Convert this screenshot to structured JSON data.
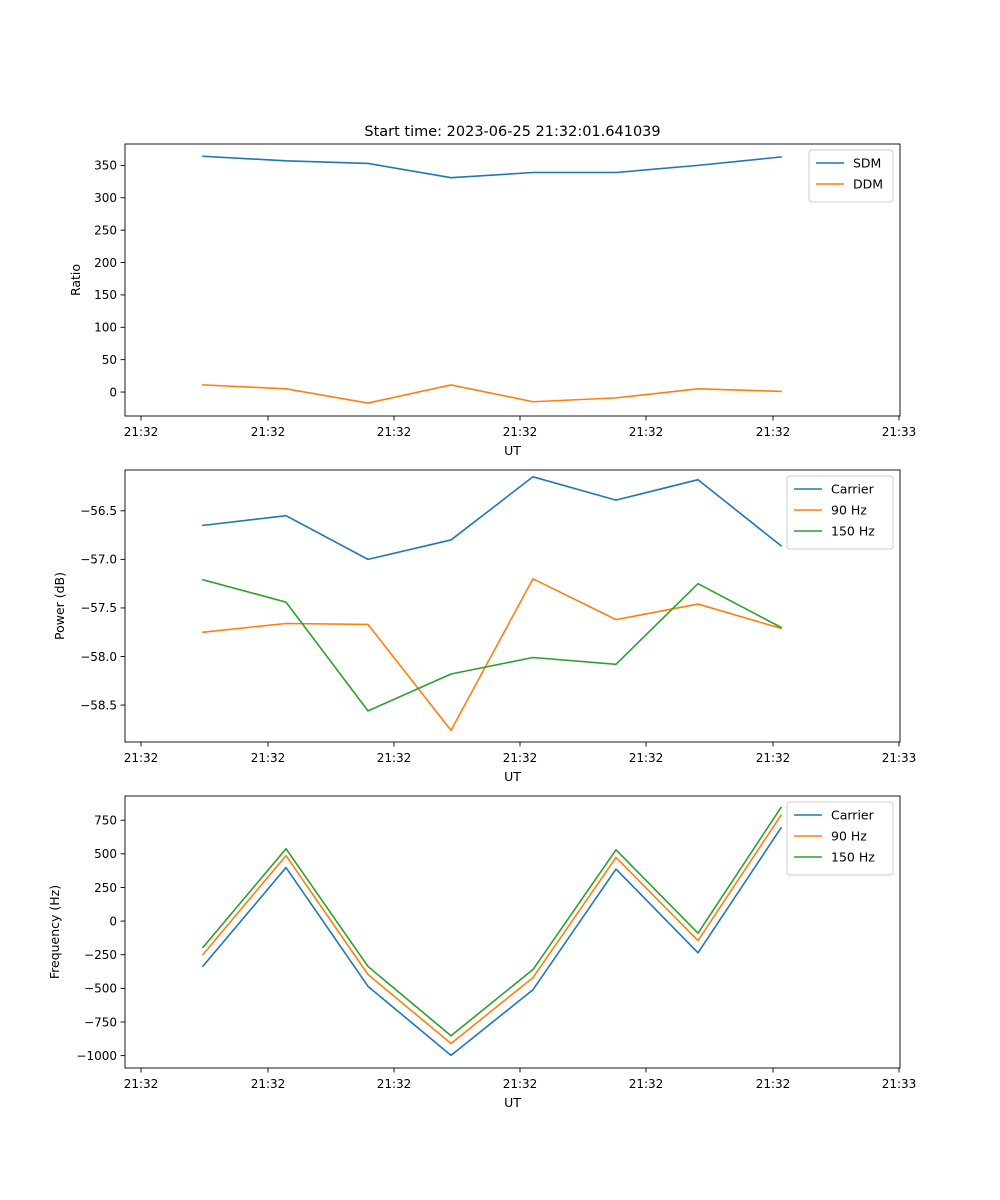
{
  "chart_data": [
    {
      "type": "line",
      "title": "Start time: 2023-06-25 21:32:01.641039",
      "xlabel": "UT",
      "ylabel": "Ratio",
      "x_tick_labels": [
        "21:32",
        "21:32",
        "21:32",
        "21:32",
        "21:32",
        "21:32",
        "21:32",
        "21:33"
      ],
      "ylim": [
        -37,
        383
      ],
      "yticks": [
        0,
        50,
        100,
        150,
        200,
        250,
        300,
        350
      ],
      "legend": "top-right",
      "series": [
        {
          "name": "SDM",
          "color": "#1f77b4",
          "values": [
            364,
            357,
            353,
            331,
            339,
            339,
            350,
            363
          ]
        },
        {
          "name": "DDM",
          "color": "#ff7f0e",
          "values": [
            11,
            5,
            -17,
            11,
            -15,
            -9,
            5,
            1
          ]
        }
      ]
    },
    {
      "type": "line",
      "title": "",
      "xlabel": "UT",
      "ylabel": "Power (dB)",
      "x_tick_labels": [
        "21:32",
        "21:32",
        "21:32",
        "21:32",
        "21:32",
        "21:32",
        "21:32",
        "21:33"
      ],
      "ylim": [
        -58.88,
        -56.08
      ],
      "yticks": [
        -58.5,
        -58.0,
        -57.5,
        -57.0,
        -56.5
      ],
      "ytick_labels": [
        "−58.5",
        "−58.0",
        "−57.5",
        "−57.0",
        "−56.5"
      ],
      "legend": "top-right",
      "series": [
        {
          "name": "Carrier",
          "color": "#1f77b4",
          "values": [
            -56.65,
            -56.55,
            -57.0,
            -56.8,
            -56.15,
            -56.39,
            -56.18,
            -56.86
          ]
        },
        {
          "name": "90 Hz",
          "color": "#ff7f0e",
          "values": [
            -57.75,
            -57.66,
            -57.67,
            -58.76,
            -57.2,
            -57.62,
            -57.46,
            -57.71
          ]
        },
        {
          "name": "150 Hz",
          "color": "#2ca02c",
          "values": [
            -57.21,
            -57.44,
            -58.56,
            -58.18,
            -58.01,
            -58.08,
            -57.25,
            -57.7
          ]
        }
      ]
    },
    {
      "type": "line",
      "title": "",
      "xlabel": "UT",
      "ylabel": "Frequency (Hz)",
      "x_tick_labels": [
        "21:32",
        "21:32",
        "21:32",
        "21:32",
        "21:32",
        "21:32",
        "21:32",
        "21:33"
      ],
      "ylim": [
        -1092,
        930
      ],
      "yticks": [
        -1000,
        -750,
        -500,
        -250,
        0,
        250,
        500,
        750
      ],
      "ytick_labels": [
        "−1000",
        "−750",
        "−500",
        "−250",
        "0",
        "250",
        "500",
        "750"
      ],
      "legend": "top-right",
      "series": [
        {
          "name": "Carrier",
          "color": "#1f77b4",
          "values": [
            -335,
            398,
            -485,
            -998,
            -510,
            387,
            -236,
            693
          ]
        },
        {
          "name": "90 Hz",
          "color": "#ff7f0e",
          "values": [
            -248,
            487,
            -397,
            -910,
            -420,
            473,
            -145,
            787
          ]
        },
        {
          "name": "150 Hz",
          "color": "#2ca02c",
          "values": [
            -195,
            538,
            -337,
            -852,
            -360,
            530,
            -90,
            845
          ]
        }
      ]
    }
  ]
}
